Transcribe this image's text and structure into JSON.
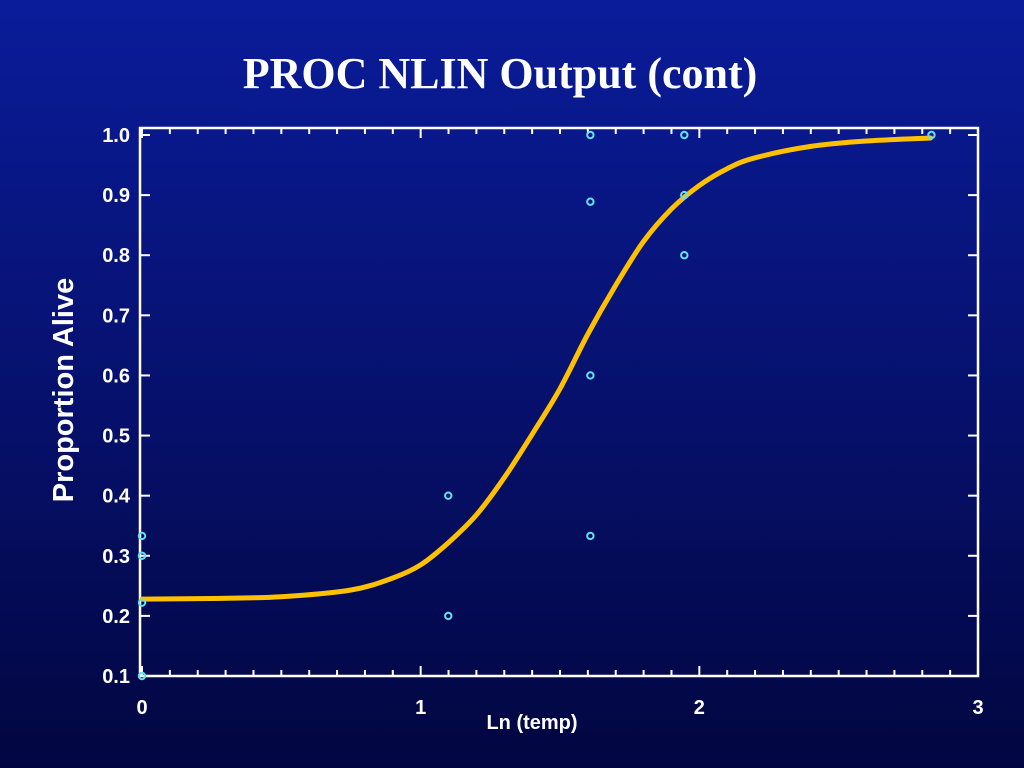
{
  "slide": {
    "title": "PROC NLIN Output (cont)"
  },
  "chart_data": {
    "type": "scatter",
    "title": "",
    "xlabel": "Ln (temp)",
    "ylabel": "Proportion Alive",
    "xlim": [
      0,
      3
    ],
    "ylim": [
      0.1,
      1.0
    ],
    "xticks": [
      {
        "value": 0,
        "label": "0"
      },
      {
        "value": 1,
        "label": "1"
      },
      {
        "value": 2,
        "label": "2"
      },
      {
        "value": 3,
        "label": "3"
      }
    ],
    "yticks": [
      {
        "value": 0.1,
        "label": "0.1"
      },
      {
        "value": 0.2,
        "label": "0.2"
      },
      {
        "value": 0.3,
        "label": "0.3"
      },
      {
        "value": 0.4,
        "label": "0.4"
      },
      {
        "value": 0.5,
        "label": "0.5"
      },
      {
        "value": 0.6,
        "label": "0.6"
      },
      {
        "value": 0.7,
        "label": "0.7"
      },
      {
        "value": 0.8,
        "label": "0.8"
      },
      {
        "value": 0.9,
        "label": "0.9"
      },
      {
        "value": 1.0,
        "label": "1.0"
      }
    ],
    "grid": false,
    "observed": {
      "color": "#66e0f0",
      "points": [
        {
          "x": 0.0,
          "y": 0.333
        },
        {
          "x": 0.0,
          "y": 0.3
        },
        {
          "x": 0.0,
          "y": 0.222
        },
        {
          "x": 0.0,
          "y": 0.1
        },
        {
          "x": 1.099,
          "y": 0.4
        },
        {
          "x": 1.099,
          "y": 0.2
        },
        {
          "x": 1.609,
          "y": 1.0
        },
        {
          "x": 1.609,
          "y": 0.889
        },
        {
          "x": 1.609,
          "y": 0.6
        },
        {
          "x": 1.609,
          "y": 0.333
        },
        {
          "x": 1.946,
          "y": 1.0
        },
        {
          "x": 1.946,
          "y": 0.9
        },
        {
          "x": 1.946,
          "y": 0.8
        },
        {
          "x": 2.833,
          "y": 1.0
        }
      ]
    },
    "fitted_curve": {
      "color": "#ffc000",
      "x": [
        0.0,
        0.25,
        0.5,
        0.75,
        0.9,
        1.0,
        1.1,
        1.2,
        1.3,
        1.4,
        1.5,
        1.6,
        1.7,
        1.8,
        1.9,
        2.0,
        2.1,
        2.2,
        2.4,
        2.6,
        2.83
      ],
      "y": [
        0.228,
        0.229,
        0.232,
        0.243,
        0.263,
        0.285,
        0.322,
        0.368,
        0.43,
        0.502,
        0.578,
        0.669,
        0.75,
        0.823,
        0.877,
        0.916,
        0.944,
        0.962,
        0.981,
        0.99,
        0.995
      ]
    }
  }
}
